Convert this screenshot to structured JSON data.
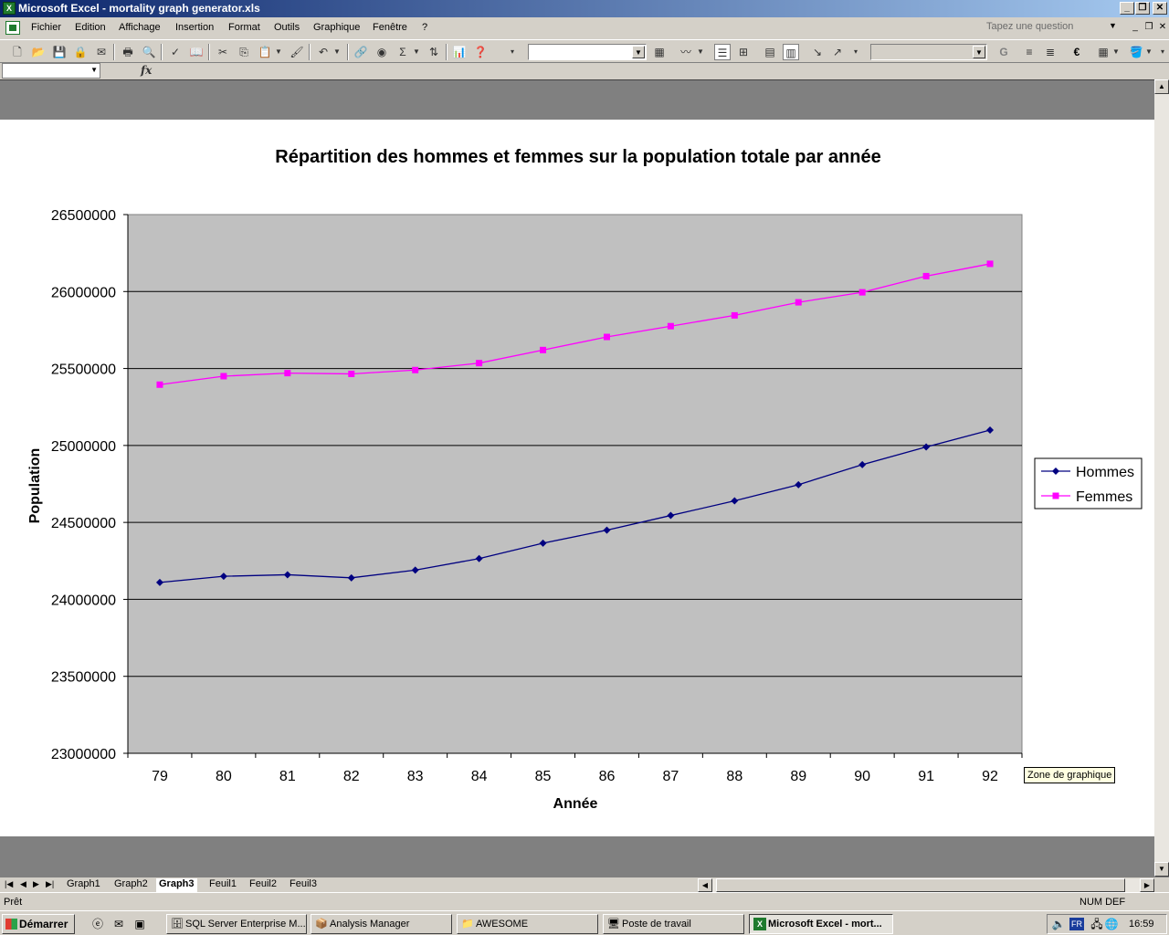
{
  "window": {
    "title": "Microsoft Excel - mortality graph generator.xls",
    "minimize": "_",
    "restore": "❐",
    "close": "✕"
  },
  "menu": {
    "items": [
      "Fichier",
      "Edition",
      "Affichage",
      "Insertion",
      "Format",
      "Outils",
      "Graphique",
      "Fenêtre",
      "?"
    ],
    "ask_placeholder": "Tapez une question"
  },
  "toolbar": {
    "sum_symbol": "Σ",
    "bold_label": "G",
    "euro_label": "€"
  },
  "formula_bar": {
    "fx_label": "fx"
  },
  "tooltip": "Zone de graphique",
  "sheet_tabs": {
    "tabs": [
      "Graph1",
      "Graph2",
      "Graph3",
      "Feuil1",
      "Feuil2",
      "Feuil3"
    ],
    "active": "Graph3"
  },
  "status": {
    "text": "Prêt",
    "indicators": "NUM DEF"
  },
  "taskbar": {
    "start_label": "Démarrer",
    "buttons": [
      "SQL Server Enterprise M...",
      "Analysis Manager",
      "AWESOME",
      "Poste de travail",
      "Microsoft Excel - mort..."
    ],
    "lang": "FR",
    "clock": "16:59"
  },
  "colors": {
    "plot_area": "#c0c0c0",
    "hommes": "#000080",
    "femmes": "#ff00ff"
  },
  "chart_data": {
    "type": "line",
    "title": "Répartition des hommes et femmes sur la population totale par année",
    "xlabel": "Année",
    "ylabel": "Population",
    "ylim": [
      23000000,
      26500000
    ],
    "ytick_step": 500000,
    "categories": [
      "79",
      "80",
      "81",
      "82",
      "83",
      "84",
      "85",
      "86",
      "87",
      "88",
      "89",
      "90",
      "91",
      "92"
    ],
    "legend_position": "right",
    "grid": "horizontal",
    "series": [
      {
        "name": "Hommes",
        "marker": "diamond",
        "values": [
          24110000,
          24150000,
          24160000,
          24140000,
          24190000,
          24265000,
          24365000,
          24450000,
          24545000,
          24640000,
          24745000,
          24875000,
          24990000,
          25100000
        ]
      },
      {
        "name": "Femmes",
        "marker": "square",
        "values": [
          25395000,
          25450000,
          25470000,
          25465000,
          25490000,
          25535000,
          25620000,
          25705000,
          25775000,
          25845000,
          25930000,
          25995000,
          26100000,
          26180000
        ]
      }
    ]
  }
}
